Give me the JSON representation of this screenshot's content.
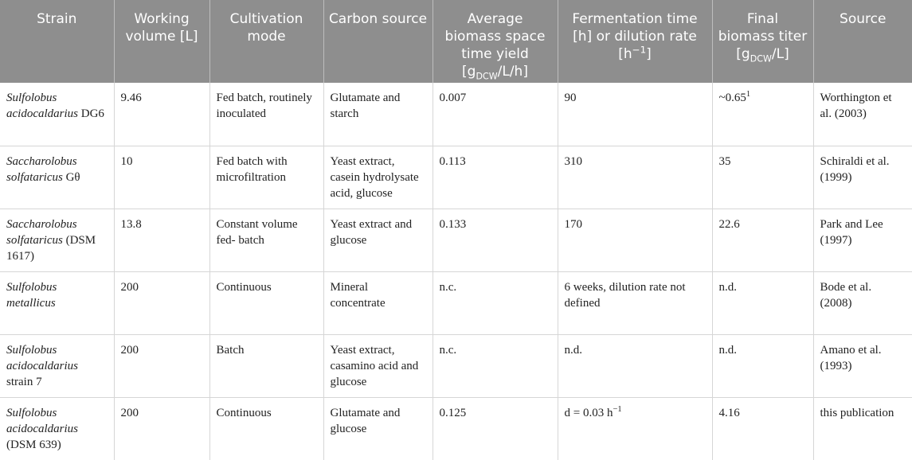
{
  "headers": [
    {
      "text": "Strain"
    },
    {
      "pre": "Working volume [L]"
    },
    {
      "text": "Cultivation mode"
    },
    {
      "text": "Carbon source"
    },
    {
      "pre": "Average biomass space time yield [g",
      "sub": "DCW",
      "post": "/L/h]"
    },
    {
      "pre": "Fermentation time [h] or dilution rate [h",
      "sup": "−1",
      "post": "]"
    },
    {
      "pre": "Final biomass titer [g",
      "sub": "DCW",
      "post": "/L]"
    },
    {
      "text": "Source"
    }
  ],
  "rows": [
    {
      "strain_italic": "Sulfolobus acidocaldarius",
      "strain_plain": "DG6",
      "volume": "9.46",
      "mode": "Fed batch, routinely inoculated",
      "carbon": "Glutamate and starch",
      "yield": "0.007",
      "time": "90",
      "titer": "~0.65",
      "titer_sup": "1",
      "source": "Worthington et al. (2003)"
    },
    {
      "strain_italic": "Saccharolobus solfataricus",
      "strain_plain": "Gθ",
      "volume": "10",
      "mode": "Fed batch with microfiltration",
      "carbon": "Yeast extract, casein hydrolysate acid, glucose",
      "yield": "0.113",
      "time": "310",
      "titer": "35",
      "source": "Schiraldi et al. (1999)"
    },
    {
      "strain_italic": "Saccharolobus solfataricus",
      "strain_plain": "(DSM 1617)",
      "volume": "13.8",
      "mode": "Constant volume fed- batch",
      "carbon": "Yeast extract and glucose",
      "yield": "0.133",
      "time": "170",
      "titer": "22.6",
      "source": "Park and Lee (1997)"
    },
    {
      "strain_italic": "Sulfolobus metallicus",
      "strain_plain": "",
      "volume": "200",
      "mode": "Continuous",
      "carbon": "Mineral concentrate",
      "yield": "n.c.",
      "time": "6 weeks, dilution rate not defined",
      "titer": "n.d.",
      "source": "Bode et al. (2008)"
    },
    {
      "strain_italic": "Sulfolobus acidocaldarius",
      "strain_plain": "strain 7",
      "volume": "200",
      "mode": "Batch",
      "carbon": "Yeast extract, casamino acid and glucose",
      "yield": "n.c.",
      "time": "n.d.",
      "titer": "n.d.",
      "source": "Amano et al. (1993)"
    },
    {
      "strain_italic": "Sulfolobus acidocaldarius",
      "strain_plain": "(DSM 639)",
      "volume": "200",
      "mode": "Continuous",
      "carbon": "Glutamate and glucose",
      "yield": "0.125",
      "time": "d = 0.03 h",
      "time_sup": "−1",
      "titer": "4.16",
      "source": "this publication"
    }
  ]
}
